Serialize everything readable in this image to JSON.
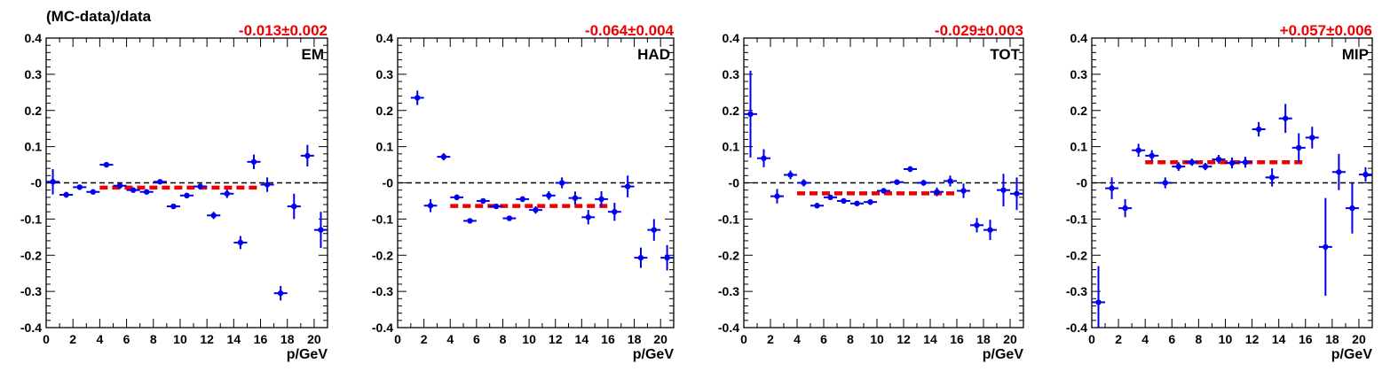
{
  "ylabel": "(MC-data)/data",
  "colors": {
    "points": "#0000ee",
    "fit": "#ee0000",
    "zero": "#000000"
  },
  "chart_data": [
    {
      "type": "scatter",
      "panel_label": "EM",
      "fit_text": "-0.013±0.002",
      "fit_value": -0.013,
      "fit_range": [
        4,
        16
      ],
      "xlabel": "p/GeV",
      "xlim": [
        0,
        21
      ],
      "ylim": [
        -0.4,
        0.4
      ],
      "x_ticks": [
        0,
        2,
        4,
        6,
        8,
        10,
        12,
        14,
        16,
        18,
        20
      ],
      "y_ticks": [
        -0.4,
        -0.3,
        -0.2,
        -0.1,
        0,
        0.1,
        0.2,
        0.3,
        0.4
      ],
      "y_tick_labels": [
        "-0.4",
        "-0.3",
        "-0.2",
        "-0.1",
        "-0",
        "0.1",
        "0.2",
        "0.3",
        "0.4"
      ],
      "points": [
        {
          "x": 0.5,
          "y": 0.003,
          "err": 0.035
        },
        {
          "x": 1.5,
          "y": -0.033,
          "err": 0.008
        },
        {
          "x": 2.5,
          "y": -0.012,
          "err": 0.006
        },
        {
          "x": 3.5,
          "y": -0.025,
          "err": 0.006
        },
        {
          "x": 4.5,
          "y": 0.05,
          "err": 0.006
        },
        {
          "x": 5.5,
          "y": -0.008,
          "err": 0.006
        },
        {
          "x": 6.5,
          "y": -0.02,
          "err": 0.006
        },
        {
          "x": 7.5,
          "y": -0.025,
          "err": 0.006
        },
        {
          "x": 8.5,
          "y": 0.003,
          "err": 0.006
        },
        {
          "x": 9.5,
          "y": -0.065,
          "err": 0.006
        },
        {
          "x": 10.5,
          "y": -0.035,
          "err": 0.006
        },
        {
          "x": 11.5,
          "y": -0.01,
          "err": 0.008
        },
        {
          "x": 12.5,
          "y": -0.09,
          "err": 0.01
        },
        {
          "x": 13.5,
          "y": -0.03,
          "err": 0.012
        },
        {
          "x": 14.5,
          "y": -0.165,
          "err": 0.018
        },
        {
          "x": 15.5,
          "y": 0.058,
          "err": 0.02
        },
        {
          "x": 16.5,
          "y": -0.005,
          "err": 0.02
        },
        {
          "x": 17.5,
          "y": -0.305,
          "err": 0.02
        },
        {
          "x": 18.5,
          "y": -0.065,
          "err": 0.035
        },
        {
          "x": 19.5,
          "y": 0.075,
          "err": 0.03
        },
        {
          "x": 20.5,
          "y": -0.13,
          "err": 0.05
        }
      ]
    },
    {
      "type": "scatter",
      "panel_label": "HAD",
      "fit_text": "-0.064±0.004",
      "fit_value": -0.064,
      "fit_range": [
        4,
        16
      ],
      "xlabel": "p/GeV",
      "xlim": [
        0,
        21
      ],
      "ylim": [
        -0.4,
        0.4
      ],
      "x_ticks": [
        0,
        2,
        4,
        6,
        8,
        10,
        12,
        14,
        16,
        18,
        20
      ],
      "y_ticks": [
        -0.4,
        -0.3,
        -0.2,
        -0.1,
        0,
        0.1,
        0.2,
        0.3,
        0.4
      ],
      "y_tick_labels": [
        "-0.4",
        "-0.3",
        "-0.2",
        "-0.1",
        "-0",
        "0.1",
        "0.2",
        "0.3",
        "0.4"
      ],
      "points": [
        {
          "x": 1.5,
          "y": 0.235,
          "err": 0.02
        },
        {
          "x": 2.5,
          "y": -0.063,
          "err": 0.018
        },
        {
          "x": 3.5,
          "y": 0.072,
          "err": 0.01
        },
        {
          "x": 4.5,
          "y": -0.04,
          "err": 0.008
        },
        {
          "x": 5.5,
          "y": -0.105,
          "err": 0.006
        },
        {
          "x": 6.5,
          "y": -0.05,
          "err": 0.006
        },
        {
          "x": 7.5,
          "y": -0.065,
          "err": 0.006
        },
        {
          "x": 8.5,
          "y": -0.098,
          "err": 0.006
        },
        {
          "x": 9.5,
          "y": -0.045,
          "err": 0.008
        },
        {
          "x": 10.5,
          "y": -0.075,
          "err": 0.01
        },
        {
          "x": 11.5,
          "y": -0.035,
          "err": 0.012
        },
        {
          "x": 12.5,
          "y": 0.0,
          "err": 0.015
        },
        {
          "x": 13.5,
          "y": -0.042,
          "err": 0.018
        },
        {
          "x": 14.5,
          "y": -0.095,
          "err": 0.02
        },
        {
          "x": 15.5,
          "y": -0.045,
          "err": 0.022
        },
        {
          "x": 16.5,
          "y": -0.08,
          "err": 0.025
        },
        {
          "x": 17.5,
          "y": -0.01,
          "err": 0.03
        },
        {
          "x": 18.5,
          "y": -0.207,
          "err": 0.028
        },
        {
          "x": 19.5,
          "y": -0.13,
          "err": 0.03
        },
        {
          "x": 20.5,
          "y": -0.207,
          "err": 0.035
        }
      ]
    },
    {
      "type": "scatter",
      "panel_label": "TOT",
      "fit_text": "-0.029±0.003",
      "fit_value": -0.029,
      "fit_range": [
        4,
        16
      ],
      "xlabel": "p/GeV",
      "xlim": [
        0,
        21
      ],
      "ylim": [
        -0.4,
        0.4
      ],
      "x_ticks": [
        0,
        2,
        4,
        6,
        8,
        10,
        12,
        14,
        16,
        18,
        20
      ],
      "y_ticks": [
        -0.4,
        -0.3,
        -0.2,
        -0.1,
        0,
        0.1,
        0.2,
        0.3,
        0.4
      ],
      "y_tick_labels": [
        "-0.4",
        "-0.3",
        "-0.2",
        "-0.1",
        "-0",
        "0.1",
        "0.2",
        "0.3",
        "0.4"
      ],
      "points": [
        {
          "x": 0.5,
          "y": 0.19,
          "err": 0.12
        },
        {
          "x": 1.5,
          "y": 0.068,
          "err": 0.025
        },
        {
          "x": 2.5,
          "y": -0.037,
          "err": 0.02
        },
        {
          "x": 3.5,
          "y": 0.022,
          "err": 0.012
        },
        {
          "x": 4.5,
          "y": 0.0,
          "err": 0.01
        },
        {
          "x": 5.5,
          "y": -0.063,
          "err": 0.006
        },
        {
          "x": 6.5,
          "y": -0.04,
          "err": 0.006
        },
        {
          "x": 7.5,
          "y": -0.05,
          "err": 0.006
        },
        {
          "x": 8.5,
          "y": -0.057,
          "err": 0.006
        },
        {
          "x": 9.5,
          "y": -0.053,
          "err": 0.008
        },
        {
          "x": 10.5,
          "y": -0.022,
          "err": 0.006
        },
        {
          "x": 11.5,
          "y": 0.002,
          "err": 0.006
        },
        {
          "x": 12.5,
          "y": 0.038,
          "err": 0.008
        },
        {
          "x": 13.5,
          "y": 0.0,
          "err": 0.008
        },
        {
          "x": 14.5,
          "y": -0.025,
          "err": 0.012
        },
        {
          "x": 15.5,
          "y": 0.005,
          "err": 0.015
        },
        {
          "x": 16.5,
          "y": -0.022,
          "err": 0.02
        },
        {
          "x": 17.5,
          "y": -0.117,
          "err": 0.02
        },
        {
          "x": 18.5,
          "y": -0.13,
          "err": 0.028
        },
        {
          "x": 19.5,
          "y": -0.02,
          "err": 0.045
        },
        {
          "x": 20.5,
          "y": -0.03,
          "err": 0.045
        }
      ]
    },
    {
      "type": "scatter",
      "panel_label": "MIP",
      "fit_text": "+0.057±0.006",
      "fit_value": 0.057,
      "fit_range": [
        4,
        16
      ],
      "xlabel": "p/GeV",
      "xlim": [
        0,
        21
      ],
      "ylim": [
        -0.4,
        0.4
      ],
      "x_ticks": [
        0,
        2,
        4,
        6,
        8,
        10,
        12,
        14,
        16,
        18,
        20
      ],
      "y_ticks": [
        -0.4,
        -0.3,
        -0.2,
        -0.1,
        0,
        0.1,
        0.2,
        0.3,
        0.4
      ],
      "y_tick_labels": [
        "-0.4",
        "-0.3",
        "-0.2",
        "-0.1",
        "-0",
        "0.1",
        "0.2",
        "0.3",
        "0.4"
      ],
      "points": [
        {
          "x": 0.5,
          "y": -0.33,
          "err": 0.1
        },
        {
          "x": 1.5,
          "y": -0.015,
          "err": 0.03
        },
        {
          "x": 2.5,
          "y": -0.07,
          "err": 0.025
        },
        {
          "x": 3.5,
          "y": 0.09,
          "err": 0.018
        },
        {
          "x": 4.5,
          "y": 0.075,
          "err": 0.015
        },
        {
          "x": 5.5,
          "y": 0.0,
          "err": 0.015
        },
        {
          "x": 6.5,
          "y": 0.045,
          "err": 0.012
        },
        {
          "x": 7.5,
          "y": 0.057,
          "err": 0.01
        },
        {
          "x": 8.5,
          "y": 0.045,
          "err": 0.01
        },
        {
          "x": 9.5,
          "y": 0.065,
          "err": 0.012
        },
        {
          "x": 10.5,
          "y": 0.055,
          "err": 0.015
        },
        {
          "x": 11.5,
          "y": 0.057,
          "err": 0.015
        },
        {
          "x": 12.5,
          "y": 0.148,
          "err": 0.02
        },
        {
          "x": 13.5,
          "y": 0.015,
          "err": 0.025
        },
        {
          "x": 14.5,
          "y": 0.178,
          "err": 0.04
        },
        {
          "x": 15.5,
          "y": 0.097,
          "err": 0.04
        },
        {
          "x": 16.5,
          "y": 0.125,
          "err": 0.03
        },
        {
          "x": 17.5,
          "y": -0.177,
          "err": 0.135
        },
        {
          "x": 18.5,
          "y": 0.03,
          "err": 0.05
        },
        {
          "x": 19.5,
          "y": -0.07,
          "err": 0.07
        },
        {
          "x": 20.5,
          "y": 0.023,
          "err": 0.02
        }
      ]
    }
  ]
}
